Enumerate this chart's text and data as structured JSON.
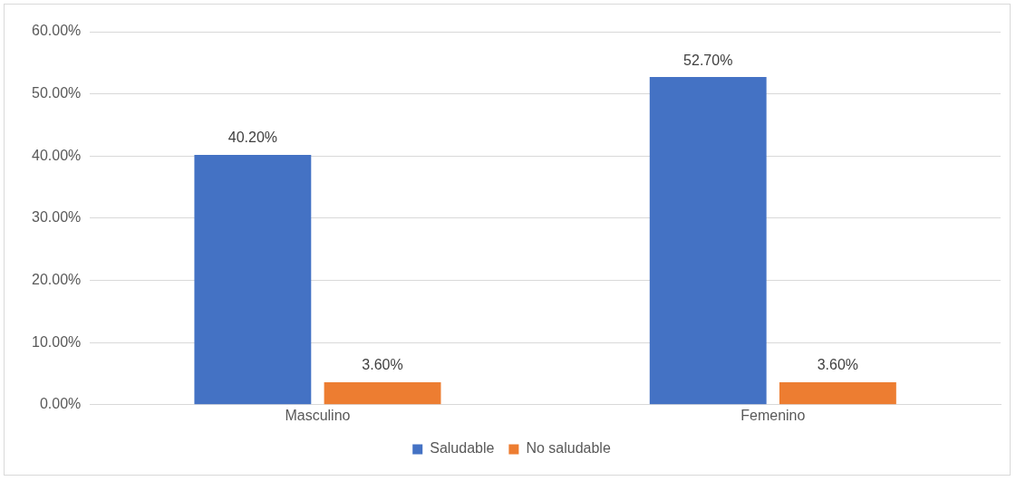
{
  "chart_data": {
    "type": "bar",
    "categories": [
      "Masculino",
      "Femenino"
    ],
    "series": [
      {
        "name": "Saludable",
        "color": "#4472c4",
        "values": [
          40.2,
          52.7
        ],
        "value_labels": [
          "40.20%",
          "52.70%"
        ]
      },
      {
        "name": "No saludable",
        "color": "#ed7d31",
        "values": [
          3.6,
          3.6
        ],
        "value_labels": [
          "3.60%",
          "3.60%"
        ]
      }
    ],
    "ylim": [
      0,
      60
    ],
    "yticks": [
      {
        "value": 0,
        "label": "0.00%"
      },
      {
        "value": 10,
        "label": "10.00%"
      },
      {
        "value": 20,
        "label": "20.00%"
      },
      {
        "value": 30,
        "label": "30.00%"
      },
      {
        "value": 40,
        "label": "40.00%"
      },
      {
        "value": 50,
        "label": "50.00%"
      },
      {
        "value": 60,
        "label": "60.00%"
      }
    ],
    "grid": "y",
    "legend": "bottom"
  }
}
